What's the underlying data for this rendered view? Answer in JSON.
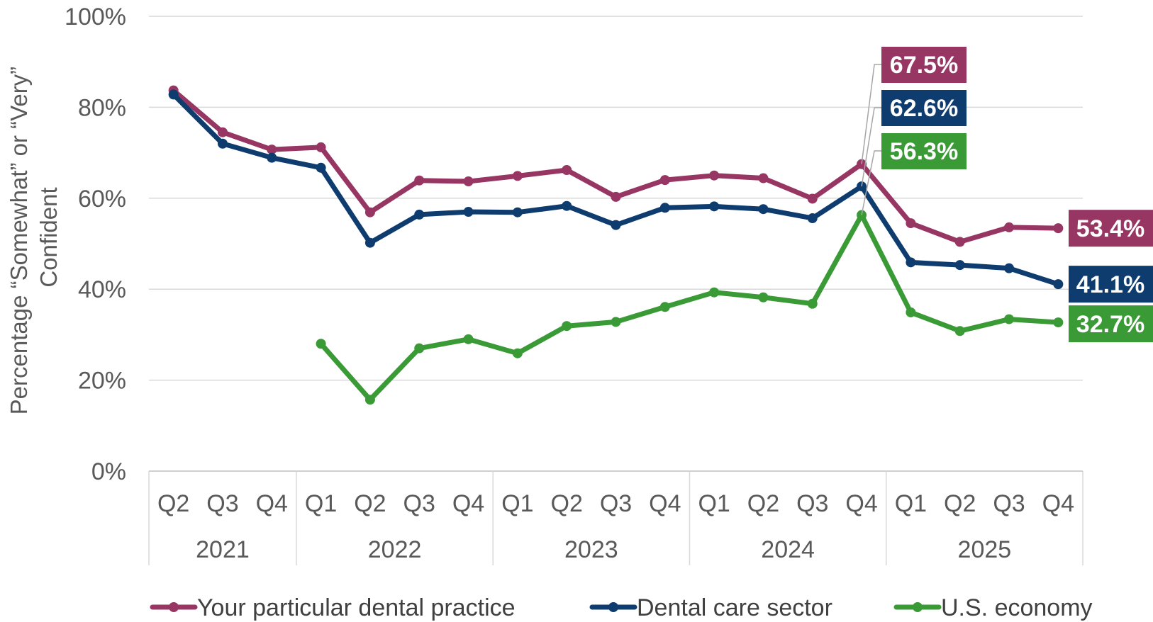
{
  "chart_data": {
    "type": "line",
    "ylabel_line1": "Percentage “Somewhat” or “Very”",
    "ylabel_line2": "Confident",
    "ylim": [
      0,
      100
    ],
    "y_ticks": [
      "0%",
      "20%",
      "40%",
      "60%",
      "80%",
      "100%"
    ],
    "grid": true,
    "legend_position": "bottom",
    "categories": [
      "Q2",
      "Q3",
      "Q4",
      "Q1",
      "Q2",
      "Q3",
      "Q4",
      "Q1",
      "Q2",
      "Q3",
      "Q4",
      "Q1",
      "Q2",
      "Q3",
      "Q4",
      "Q1",
      "Q2",
      "Q3",
      "Q4"
    ],
    "year_groups": [
      {
        "label": "2021",
        "count": 3
      },
      {
        "label": "2022",
        "count": 4
      },
      {
        "label": "2023",
        "count": 4
      },
      {
        "label": "2024",
        "count": 4
      },
      {
        "label": "2025",
        "count": 4
      }
    ],
    "series": [
      {
        "name": "Your particular dental practice",
        "color": "#973663",
        "values": [
          83.7,
          74.5,
          70.7,
          71.2,
          56.9,
          63.9,
          63.7,
          64.9,
          66.2,
          60.3,
          64.0,
          65.0,
          64.4,
          59.9,
          67.5,
          54.5,
          50.4,
          53.6,
          53.4
        ]
      },
      {
        "name": "Dental care sector",
        "color": "#0e3c6e",
        "values": [
          82.8,
          72.0,
          68.9,
          66.7,
          50.2,
          56.4,
          57.0,
          56.9,
          58.3,
          54.1,
          57.9,
          58.2,
          57.6,
          55.6,
          62.6,
          45.9,
          45.3,
          44.6,
          41.1
        ]
      },
      {
        "name": "U.S. economy",
        "color": "#3a9a36",
        "values": [
          null,
          null,
          null,
          28.0,
          15.7,
          27.0,
          29.0,
          25.9,
          31.9,
          32.8,
          36.1,
          39.3,
          38.2,
          36.8,
          56.3,
          34.9,
          30.8,
          33.4,
          32.7
        ]
      }
    ],
    "callouts": [
      {
        "text": "67.5%",
        "series": 0,
        "index": 14,
        "kind": "leader"
      },
      {
        "text": "62.6%",
        "series": 1,
        "index": 14,
        "kind": "leader"
      },
      {
        "text": "56.3%",
        "series": 2,
        "index": 14,
        "kind": "leader"
      },
      {
        "text": "53.4%",
        "series": 0,
        "index": 18,
        "kind": "end"
      },
      {
        "text": "41.1%",
        "series": 1,
        "index": 18,
        "kind": "end"
      },
      {
        "text": "32.7%",
        "series": 2,
        "index": 18,
        "kind": "end"
      }
    ]
  }
}
